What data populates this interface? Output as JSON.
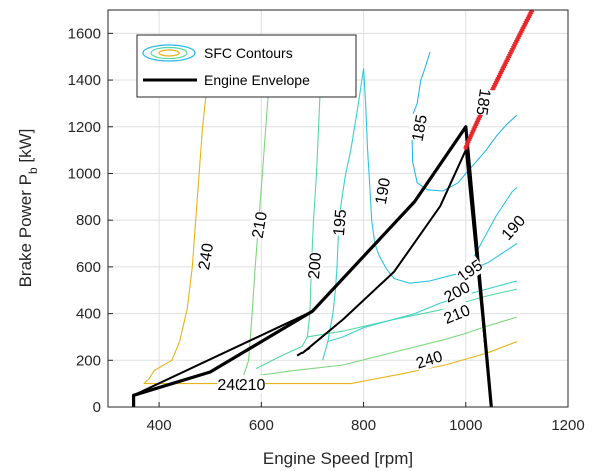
{
  "chart_data": {
    "type": "line",
    "xlabel": "Engine Speed [rpm]",
    "ylabel": "Brake Power P",
    "ylabel_subscript": "b",
    "ylabel_unit": "[kW]",
    "xlim": [
      300,
      1200
    ],
    "ylim": [
      0,
      1700
    ],
    "xticks": [
      400,
      600,
      800,
      1000,
      1200
    ],
    "yticks": [
      0,
      200,
      400,
      600,
      800,
      1000,
      1200,
      1400,
      1600
    ],
    "grid": true,
    "legend": {
      "position": "top-left",
      "entries": [
        {
          "label": "SFC Contours",
          "style": "contour"
        },
        {
          "label": "Engine Envelope",
          "style": "line"
        }
      ]
    },
    "colors": {
      "240": "#e6b418",
      "210": "#7ed67e",
      "200": "#55d8a4",
      "195": "#38d0d0",
      "190": "#2ec4e0",
      "185": "#28b6ea",
      "envelope": "#000000",
      "markers": "#e8262a"
    },
    "contours": [
      {
        "level": "240",
        "color": "240",
        "lines": [
          [
            [
              370,
              100
            ],
            [
              380,
              120
            ],
            [
              390,
              155
            ],
            [
              405,
              175
            ],
            [
              425,
              200
            ],
            [
              440,
              280
            ],
            [
              455,
              420
            ],
            [
              465,
              600
            ],
            [
              475,
              900
            ],
            [
              485,
              1200
            ],
            [
              495,
              1400
            ],
            [
              500,
              1500
            ]
          ],
          [
            [
              370,
              100
            ],
            [
              560,
              100
            ],
            [
              700,
              100
            ],
            [
              775,
              100
            ],
            [
              870,
              140
            ],
            [
              960,
              180
            ],
            [
              1000,
              205
            ],
            [
              1040,
              230
            ],
            [
              1100,
              280
            ]
          ]
        ]
      },
      {
        "level": "210",
        "color": "210",
        "lines": [
          [
            [
              515,
              100
            ],
            [
              560,
              100
            ],
            [
              575,
              200
            ],
            [
              582,
              400
            ],
            [
              588,
              600
            ],
            [
              595,
              800
            ],
            [
              602,
              1000
            ],
            [
              612,
              1300
            ],
            [
              622,
              1500
            ]
          ],
          [
            [
              515,
              100
            ],
            [
              560,
              125
            ],
            [
              660,
              155
            ],
            [
              760,
              180
            ],
            [
              860,
              235
            ],
            [
              960,
              290
            ],
            [
              1000,
              315
            ],
            [
              1040,
              345
            ],
            [
              1100,
              385
            ]
          ]
        ]
      },
      {
        "level": "200",
        "color": "200",
        "lines": [
          [
            [
              590,
              165
            ],
            [
              640,
              220
            ],
            [
              680,
              260
            ],
            [
              690,
              300
            ],
            [
              695,
              400
            ],
            [
              698,
              600
            ],
            [
              702,
              800
            ],
            [
              708,
              1000
            ],
            [
              712,
              1200
            ],
            [
              716,
              1400
            ],
            [
              720,
              1500
            ]
          ],
          [
            [
              690,
              300
            ],
            [
              760,
              325
            ],
            [
              860,
              375
            ],
            [
              960,
              420
            ],
            [
              1000,
              450
            ],
            [
              1040,
              475
            ],
            [
              1100,
              505
            ]
          ]
        ]
      },
      {
        "level": "195",
        "color": "195",
        "lines": [
          [
            [
              720,
              200
            ],
            [
              730,
              280
            ],
            [
              740,
              400
            ],
            [
              745,
              500
            ],
            [
              748,
              600
            ],
            [
              752,
              800
            ],
            [
              758,
              900
            ],
            [
              765,
              1000
            ],
            [
              775,
              1100
            ],
            [
              790,
              1300
            ],
            [
              800,
              1450
            ]
          ],
          [
            [
              730,
              280
            ],
            [
              760,
              300
            ],
            [
              800,
              340
            ],
            [
              850,
              370
            ],
            [
              900,
              400
            ],
            [
              950,
              445
            ],
            [
              1000,
              480
            ],
            [
              1050,
              510
            ],
            [
              1100,
              540
            ]
          ]
        ]
      },
      {
        "level": "190",
        "color": "190",
        "lines": [
          [
            [
              800,
              1450
            ],
            [
              804,
              1300
            ],
            [
              808,
              1100
            ],
            [
              812,
              950
            ],
            [
              816,
              800
            ],
            [
              822,
              700
            ],
            [
              830,
              650
            ],
            [
              845,
              590
            ],
            [
              860,
              550
            ],
            [
              890,
              530
            ],
            [
              930,
              540
            ],
            [
              965,
              560
            ],
            [
              1000,
              580
            ],
            [
              1045,
              620
            ],
            [
              1100,
              700
            ]
          ],
          [
            [
              1000,
              580
            ],
            [
              1030,
              700
            ],
            [
              1060,
              820
            ],
            [
              1090,
              920
            ],
            [
              1100,
              940
            ]
          ]
        ]
      },
      {
        "level": "185",
        "color": "185",
        "lines": [
          [
            [
              930,
              1520
            ],
            [
              920,
              1450
            ],
            [
              912,
              1400
            ],
            [
              905,
              1300
            ],
            [
              896,
              1250
            ],
            [
              895,
              1150
            ],
            [
              896,
              1050
            ],
            [
              905,
              960
            ],
            [
              925,
              930
            ],
            [
              955,
              925
            ],
            [
              985,
              960
            ],
            [
              1000,
              1000
            ],
            [
              1020,
              1050
            ],
            [
              1040,
              1100
            ],
            [
              1060,
              1160
            ],
            [
              1080,
              1210
            ],
            [
              1100,
              1250
            ]
          ]
        ]
      }
    ],
    "contour_labels": [
      {
        "text": "240",
        "x": 490,
        "y": 645,
        "angle": -80
      },
      {
        "text": "210",
        "x": 595,
        "y": 780,
        "angle": -80
      },
      {
        "text": "200",
        "x": 703,
        "y": 605,
        "angle": -85
      },
      {
        "text": "195",
        "x": 752,
        "y": 790,
        "angle": -85
      },
      {
        "text": "190",
        "x": 836,
        "y": 925,
        "angle": -80
      },
      {
        "text": "185",
        "x": 908,
        "y": 1195,
        "angle": -80
      },
      {
        "text": "185",
        "x": 1036,
        "y": 1305,
        "angle": 98
      },
      {
        "text": "190",
        "x": 1092,
        "y": 770,
        "angle": -48
      },
      {
        "text": "195",
        "x": 1007,
        "y": 585,
        "angle": -35
      },
      {
        "text": "200",
        "x": 982,
        "y": 495,
        "angle": -28
      },
      {
        "text": "210",
        "x": 982,
        "y": 400,
        "angle": -22
      },
      {
        "text": "240",
        "x": 928,
        "y": 205,
        "angle": -18
      },
      {
        "text": "240",
        "x": 540,
        "y": 98,
        "angle": 0
      },
      {
        "text": "210",
        "x": 582,
        "y": 98,
        "angle": 0
      }
    ],
    "envelope": [
      {
        "name": "Engine Envelope",
        "points": [
          [
            350,
            0
          ],
          [
            350,
            50
          ],
          [
            500,
            150
          ],
          [
            700,
            410
          ],
          [
            900,
            880
          ],
          [
            1000,
            1200
          ],
          [
            1050,
            0
          ]
        ]
      },
      {
        "name": "",
        "points": [
          [
            350,
            50
          ],
          [
            700,
            410
          ]
        ]
      },
      {
        "name": "",
        "points": [
          [
            680,
            230
          ],
          [
            760,
            375
          ],
          [
            860,
            580
          ],
          [
            950,
            860
          ],
          [
            1000,
            1100
          ],
          [
            1050,
            0
          ]
        ]
      }
    ],
    "markers": {
      "from": [
        1000,
        1110
      ],
      "to": [
        1130,
        1700
      ],
      "count": 70
    }
  }
}
